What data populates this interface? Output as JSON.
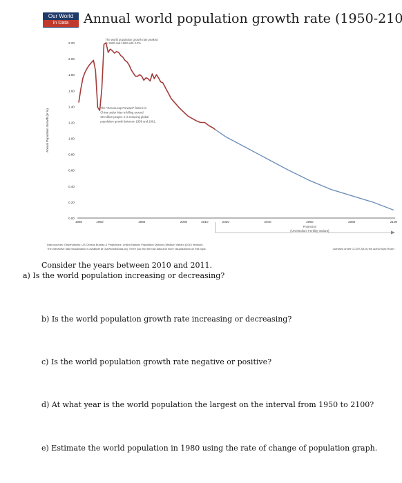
{
  "logo": {
    "line1": "Our World",
    "line2": "in Data"
  },
  "chart_data": {
    "type": "line",
    "title": "Annual world population growth rate (1950-2100)",
    "ylabel": "Annual Population Growth (in %)",
    "xlabel": "",
    "xlim": [
      1950,
      2100
    ],
    "ylim": [
      0.0,
      2.2
    ],
    "grid": false,
    "x_ticks": [
      1950,
      1960,
      1980,
      2000,
      2010,
      2020,
      2040,
      2060,
      2080,
      2100
    ],
    "y_ticks": [
      "0.00",
      "0.20",
      "0.40",
      "0.60",
      "0.80",
      "1.00",
      "1.20",
      "1.40",
      "1.60",
      "1.80",
      "2.00",
      "2.20"
    ],
    "series": [
      {
        "name": "Observations",
        "color": "#a33b3b",
        "x": [
          1950,
          1951,
          1952,
          1953,
          1954,
          1955,
          1956,
          1957,
          1958,
          1959,
          1960,
          1961,
          1962,
          1963,
          1964,
          1965,
          1966,
          1967,
          1968,
          1969,
          1970,
          1971,
          1972,
          1973,
          1974,
          1975,
          1976,
          1977,
          1978,
          1979,
          1980,
          1981,
          1982,
          1983,
          1984,
          1985,
          1986,
          1987,
          1988,
          1989,
          1990,
          1992,
          1994,
          1996,
          1998,
          2000,
          2002,
          2004,
          2006,
          2008,
          2010,
          2012,
          2014,
          2015
        ],
        "values": [
          1.45,
          1.62,
          1.76,
          1.83,
          1.88,
          1.92,
          1.95,
          1.98,
          1.85,
          1.39,
          1.35,
          1.62,
          2.18,
          2.2,
          2.08,
          2.12,
          2.1,
          2.07,
          2.09,
          2.08,
          2.04,
          2.02,
          1.98,
          1.96,
          1.92,
          1.86,
          1.82,
          1.78,
          1.78,
          1.8,
          1.78,
          1.73,
          1.76,
          1.75,
          1.72,
          1.81,
          1.75,
          1.8,
          1.76,
          1.71,
          1.7,
          1.6,
          1.5,
          1.44,
          1.38,
          1.33,
          1.28,
          1.25,
          1.22,
          1.2,
          1.2,
          1.16,
          1.13,
          1.11
        ]
      },
      {
        "name": "Projection",
        "color": "#6f90b9",
        "x": [
          2015,
          2020,
          2030,
          2040,
          2050,
          2060,
          2070,
          2080,
          2090,
          2100
        ],
        "values": [
          1.11,
          1.02,
          0.88,
          0.74,
          0.6,
          0.47,
          0.36,
          0.28,
          0.2,
          0.1
        ]
      }
    ],
    "annotations": {
      "peak_line1": "The world population growth rate peaked",
      "peak_line2": "in 1962 and 1963 with 2.2%",
      "leap_lines": [
        "The \"Great Leap Forward\" famine in",
        "China under Mao is killing around",
        "30 million people. It is reducing global",
        "population growth between 1958 and 1961."
      ],
      "projection_label": "Projection",
      "projection_sub": "(UN Medium Fertility Variant)"
    },
    "footer": {
      "sources_line1": "Data sources: Observations: US Census Bureau & Projections: United Nations Population Division (Medium Variant (2015 revision).",
      "sources_line2": "The interactive data visualization is available at OurWorldinData.org. There you find the raw data and more visualizations on this topic.",
      "license": "Licensed under CC-BY-SA by the author Max Roser"
    }
  },
  "questions": {
    "intro": "Consider the years between 2010 and 2011.",
    "a": "a) Is the world population increasing or decreasing?",
    "b": "b) Is the world population growth rate increasing or decreasing?",
    "c": "c) Is the world population growth rate negative or positive?",
    "d": "d) At what year is the world population the largest on the interval from 1950 to 2100?",
    "e": "e) Estimate the world population in 1980 using the rate of change of population graph."
  }
}
